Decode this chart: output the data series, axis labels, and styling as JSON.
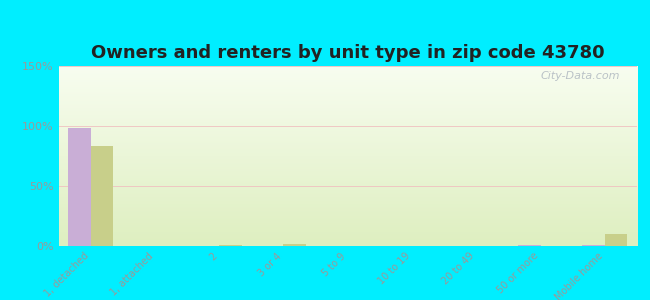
{
  "title": "Owners and renters by unit type in zip code 43780",
  "categories": [
    "1, detached",
    "1, attached",
    "2",
    "3 or 4",
    "5 to 9",
    "10 to 19",
    "20 to 49",
    "50 or more",
    "Mobile home"
  ],
  "owner_values": [
    98,
    0,
    0,
    0,
    0,
    0,
    0,
    1,
    1
  ],
  "renter_values": [
    83,
    0,
    1,
    2,
    0,
    0,
    0,
    0,
    10
  ],
  "owner_color": "#c9aed6",
  "renter_color": "#c8cf8a",
  "background_color": "#00eeff",
  "ylim": [
    0,
    150
  ],
  "yticks": [
    0,
    50,
    100,
    150
  ],
  "ytick_labels": [
    "0%",
    "50%",
    "100%",
    "150%"
  ],
  "title_fontsize": 13,
  "watermark": "City-Data.com",
  "tick_color": "#999999",
  "label_color": "#999999"
}
